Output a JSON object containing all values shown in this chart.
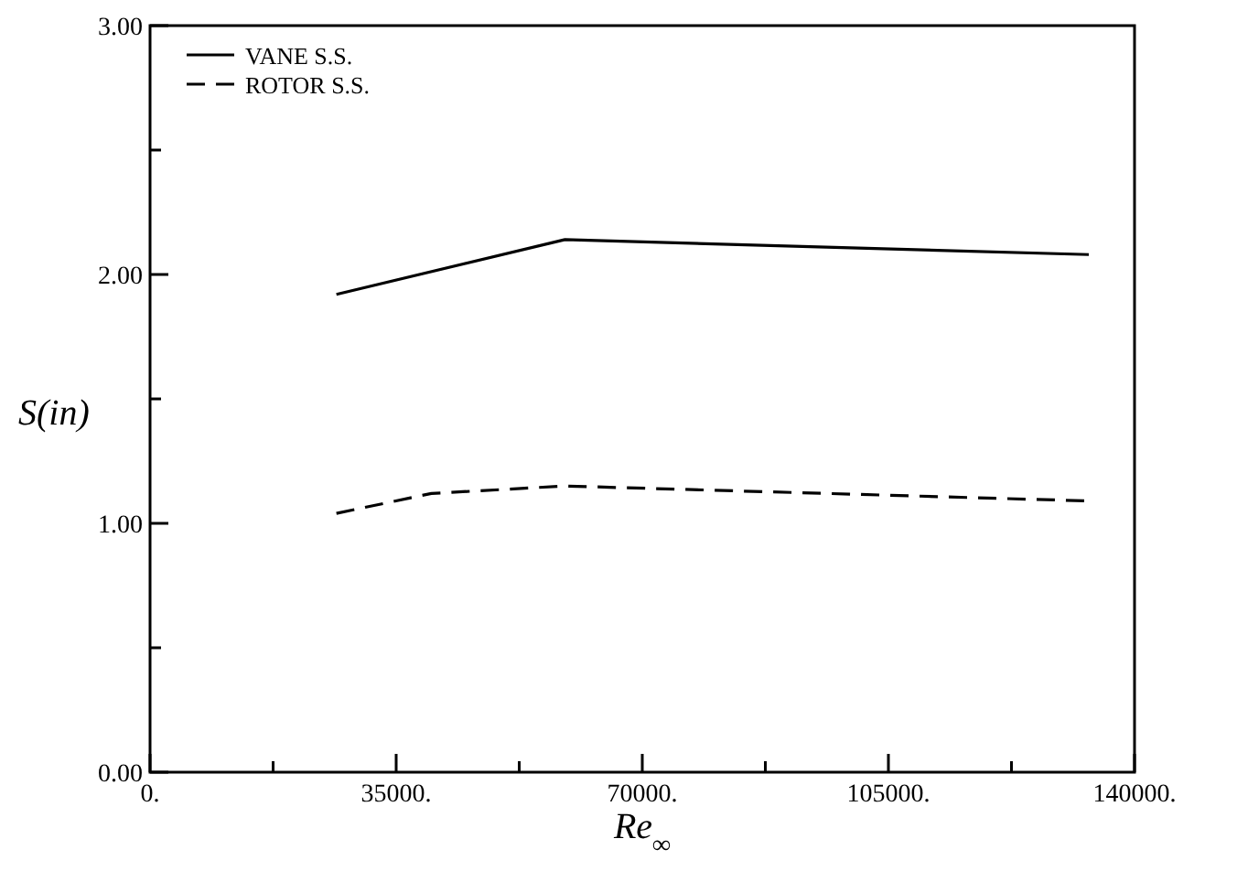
{
  "chart_data": {
    "type": "line",
    "xlabel": "Re$_{∞}$",
    "ylabel": "S(in)",
    "xlim": [
      0,
      140000
    ],
    "ylim": [
      0,
      3
    ],
    "xticks": [
      {
        "value": 0,
        "label": "0."
      },
      {
        "value": 17500,
        "label": null
      },
      {
        "value": 35000,
        "label": "35000."
      },
      {
        "value": 52500,
        "label": null
      },
      {
        "value": 70000,
        "label": "70000."
      },
      {
        "value": 87500,
        "label": null
      },
      {
        "value": 105000,
        "label": "105000."
      },
      {
        "value": 122500,
        "label": null
      },
      {
        "value": 140000,
        "label": "140000."
      }
    ],
    "yticks": [
      {
        "value": 0,
        "label": "0.00"
      },
      {
        "value": 0.5,
        "label": null
      },
      {
        "value": 1,
        "label": "1.00"
      },
      {
        "value": 1.5,
        "label": null
      },
      {
        "value": 2,
        "label": "2.00"
      },
      {
        "value": 2.5,
        "label": null
      },
      {
        "value": 3,
        "label": "3.00"
      }
    ],
    "legend": "top left",
    "grid": false,
    "marker": "none",
    "series": [
      {
        "name": "VANE S.S.",
        "color": "#000000",
        "line_style": "solid",
        "x": [
          26500,
          59000,
          133500
        ],
        "values": [
          1.92,
          2.14,
          2.08
        ]
      },
      {
        "name": "ROTOR S.S.",
        "color": "#000000",
        "line_style": "dashed",
        "x": [
          26500,
          40000,
          59000,
          133500
        ],
        "values": [
          1.04,
          1.12,
          1.15,
          1.09
        ]
      }
    ]
  }
}
